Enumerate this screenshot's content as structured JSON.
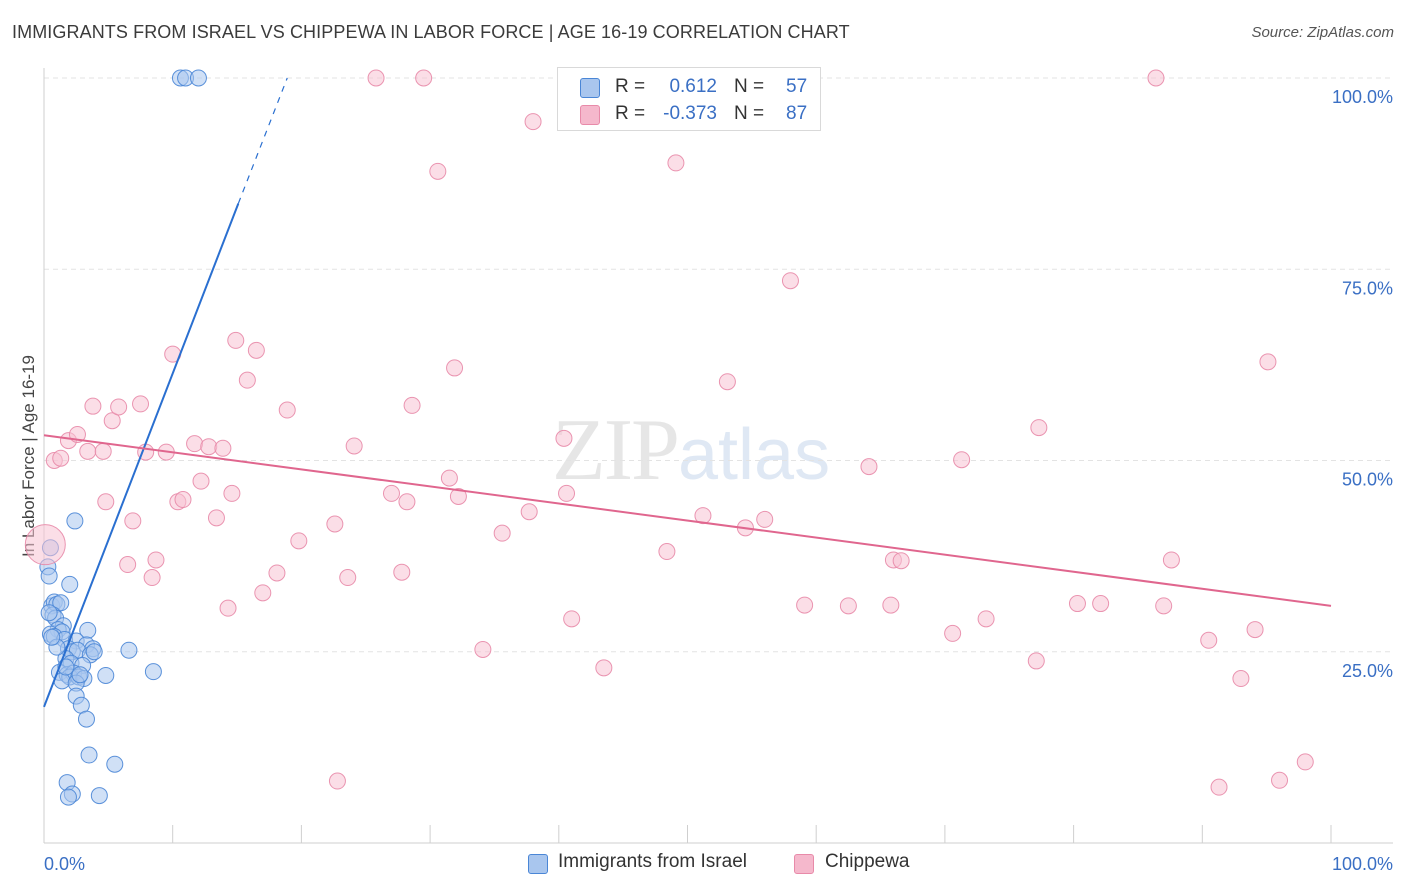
{
  "title": "IMMIGRANTS FROM ISRAEL VS CHIPPEWA IN LABOR FORCE | AGE 16-19 CORRELATION CHART",
  "source": "Source: ZipAtlas.com",
  "watermark": {
    "zip": "ZIP",
    "atlas": "atlas"
  },
  "legend": {
    "rows": [
      {
        "r_label": "R =",
        "r_value": "0.612",
        "n_label": "N =",
        "n_value": "57",
        "color": "#a9c6ee"
      },
      {
        "r_label": "R =",
        "r_value": "-0.373",
        "n_label": "N =",
        "n_value": "87",
        "color": "#f5b8cc"
      }
    ]
  },
  "bottom_legend": [
    {
      "label": "Immigrants from Israel",
      "color": "#a9c6ee"
    },
    {
      "label": "Chippewa",
      "color": "#f5b8cc"
    }
  ],
  "colors": {
    "blue_fill": "#a9c6ee",
    "blue_stroke": "#4a86d6",
    "blue_line": "#2a6fd0",
    "pink_fill": "#f7c2d3",
    "pink_stroke": "#e88aa9",
    "pink_line": "#e0668e",
    "grid": "#e3e3e3",
    "axis_text": "#3a6fc4"
  },
  "chart_data": {
    "type": "scatter",
    "title": "IMMIGRANTS FROM ISRAEL VS CHIPPEWA IN LABOR FORCE | AGE 16-19 CORRELATION CHART",
    "xlabel": "",
    "ylabel": "In Labor Force | Age 16-19",
    "xlim": [
      0,
      100
    ],
    "ylim": [
      0,
      100
    ],
    "x_tick_labels": [
      "0.0%",
      "100.0%"
    ],
    "y_tick_values": [
      25,
      50,
      75,
      100
    ],
    "y_tick_labels": [
      "25.0%",
      "50.0%",
      "75.0%",
      "100.0%"
    ],
    "grid": true,
    "series": [
      {
        "name": "Immigrants from Israel",
        "points": [
          [
            10.6,
            100
          ],
          [
            11.0,
            100
          ],
          [
            12.0,
            100
          ],
          [
            0.5,
            38.6
          ],
          [
            0.3,
            36.1
          ],
          [
            0.4,
            34.9
          ],
          [
            2.0,
            33.8
          ],
          [
            2.4,
            42.1
          ],
          [
            0.6,
            31.0
          ],
          [
            0.8,
            31.5
          ],
          [
            1.0,
            31.2
          ],
          [
            1.3,
            31.4
          ],
          [
            0.7,
            29.8
          ],
          [
            0.9,
            29.4
          ],
          [
            1.5,
            28.4
          ],
          [
            1.1,
            27.9
          ],
          [
            1.4,
            27.6
          ],
          [
            0.5,
            27.3
          ],
          [
            0.8,
            27.0
          ],
          [
            3.4,
            27.8
          ],
          [
            1.6,
            26.6
          ],
          [
            2.5,
            26.4
          ],
          [
            3.3,
            25.9
          ],
          [
            1.9,
            25.4
          ],
          [
            2.2,
            25.0
          ],
          [
            2.6,
            25.2
          ],
          [
            3.8,
            25.4
          ],
          [
            3.6,
            24.6
          ],
          [
            6.6,
            25.2
          ],
          [
            1.7,
            24.1
          ],
          [
            2.1,
            23.5
          ],
          [
            3.0,
            23.2
          ],
          [
            1.2,
            22.3
          ],
          [
            1.8,
            22.0
          ],
          [
            2.3,
            22.2
          ],
          [
            2.0,
            21.7
          ],
          [
            2.7,
            21.7
          ],
          [
            3.1,
            21.5
          ],
          [
            1.4,
            21.2
          ],
          [
            2.5,
            20.9
          ],
          [
            4.8,
            21.9
          ],
          [
            8.5,
            22.4
          ],
          [
            2.5,
            19.2
          ],
          [
            2.9,
            18.0
          ],
          [
            3.3,
            16.2
          ],
          [
            3.5,
            11.5
          ],
          [
            5.5,
            10.3
          ],
          [
            1.8,
            7.9
          ],
          [
            2.2,
            6.4
          ],
          [
            1.9,
            6.0
          ],
          [
            4.3,
            6.2
          ],
          [
            1.0,
            25.6
          ],
          [
            0.6,
            26.9
          ],
          [
            1.7,
            23.0
          ],
          [
            3.9,
            25.0
          ],
          [
            0.4,
            30.1
          ],
          [
            2.8,
            22.0
          ]
        ],
        "trend": {
          "x": [
            0,
            15.1
          ],
          "y": [
            17.8,
            83.6
          ],
          "dashed_to": [
            18.9,
            100.0
          ]
        }
      },
      {
        "name": "Chippewa",
        "points": [
          [
            0.1,
            39.0
          ],
          [
            0.8,
            50.0
          ],
          [
            1.3,
            50.3
          ],
          [
            1.9,
            52.6
          ],
          [
            2.6,
            53.4
          ],
          [
            3.4,
            51.2
          ],
          [
            3.8,
            57.1
          ],
          [
            4.6,
            51.2
          ],
          [
            4.8,
            44.6
          ],
          [
            5.3,
            55.2
          ],
          [
            5.8,
            57.0
          ],
          [
            6.5,
            36.4
          ],
          [
            6.9,
            42.1
          ],
          [
            7.5,
            57.4
          ],
          [
            7.9,
            51.1
          ],
          [
            8.4,
            34.7
          ],
          [
            8.7,
            37.0
          ],
          [
            9.5,
            51.1
          ],
          [
            10.0,
            63.9
          ],
          [
            10.4,
            44.6
          ],
          [
            10.8,
            44.9
          ],
          [
            11.7,
            52.2
          ],
          [
            12.2,
            47.3
          ],
          [
            12.8,
            51.8
          ],
          [
            13.4,
            42.5
          ],
          [
            13.9,
            51.6
          ],
          [
            14.3,
            30.7
          ],
          [
            14.6,
            45.7
          ],
          [
            14.9,
            65.7
          ],
          [
            15.8,
            60.5
          ],
          [
            16.5,
            64.4
          ],
          [
            17.0,
            32.7
          ],
          [
            18.1,
            35.3
          ],
          [
            18.9,
            56.6
          ],
          [
            19.8,
            39.5
          ],
          [
            22.6,
            41.7
          ],
          [
            22.8,
            8.1
          ],
          [
            23.6,
            34.7
          ],
          [
            24.1,
            51.9
          ],
          [
            25.8,
            100
          ],
          [
            27.0,
            45.7
          ],
          [
            27.8,
            35.4
          ],
          [
            28.2,
            44.6
          ],
          [
            28.6,
            57.2
          ],
          [
            29.5,
            100
          ],
          [
            30.6,
            87.8
          ],
          [
            31.5,
            47.7
          ],
          [
            31.9,
            62.1
          ],
          [
            32.2,
            45.3
          ],
          [
            34.1,
            25.3
          ],
          [
            35.6,
            40.5
          ],
          [
            37.7,
            43.3
          ],
          [
            38.0,
            94.3
          ],
          [
            40.4,
            52.9
          ],
          [
            40.6,
            45.7
          ],
          [
            41.0,
            29.3
          ],
          [
            43.5,
            22.9
          ],
          [
            48.4,
            38.1
          ],
          [
            49.1,
            88.9
          ],
          [
            51.2,
            42.8
          ],
          [
            53.1,
            60.3
          ],
          [
            54.5,
            41.2
          ],
          [
            56.0,
            42.3
          ],
          [
            58.0,
            73.5
          ],
          [
            59.1,
            31.1
          ],
          [
            62.5,
            31.0
          ],
          [
            64.1,
            49.2
          ],
          [
            65.8,
            31.1
          ],
          [
            66.0,
            37.0
          ],
          [
            66.6,
            36.9
          ],
          [
            70.6,
            27.4
          ],
          [
            71.3,
            50.1
          ],
          [
            73.2,
            29.3
          ],
          [
            77.1,
            23.8
          ],
          [
            77.3,
            54.3
          ],
          [
            80.3,
            31.3
          ],
          [
            82.1,
            31.3
          ],
          [
            87.0,
            31.0
          ],
          [
            87.6,
            37.0
          ],
          [
            90.5,
            26.5
          ],
          [
            91.3,
            7.3
          ],
          [
            93.0,
            21.5
          ],
          [
            94.1,
            27.9
          ],
          [
            95.1,
            62.9
          ],
          [
            96.0,
            8.2
          ],
          [
            98.0,
            10.6
          ],
          [
            86.4,
            100.0
          ]
        ],
        "trend": {
          "x": [
            0,
            100
          ],
          "y": [
            53.3,
            31.0
          ]
        }
      }
    ]
  }
}
